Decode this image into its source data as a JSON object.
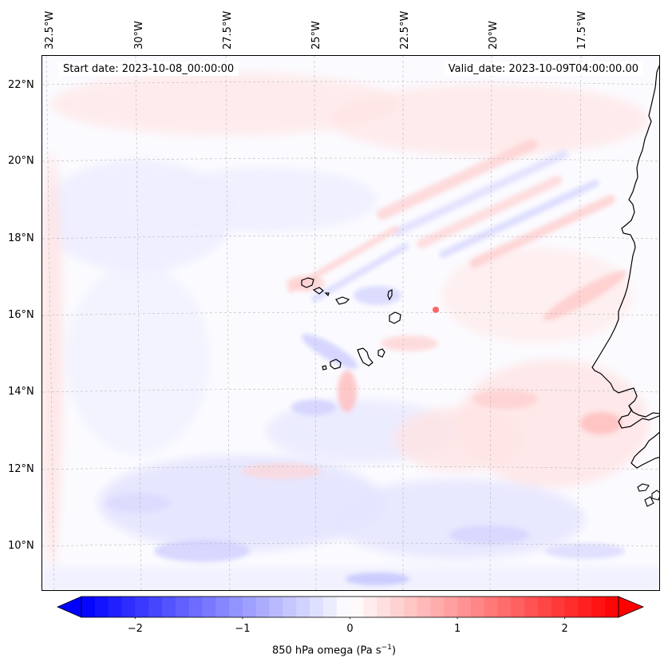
{
  "map": {
    "start_date": "Start date: 2023-10-08_00:00:00",
    "valid_date": "Valid_date: 2023-10-09T04:00:00.00",
    "lon_labels": [
      "32.5°W",
      "30°W",
      "27.5°W",
      "25°W",
      "22.5°W",
      "20°W",
      "17.5°W"
    ],
    "lat_labels": [
      "22°N",
      "20°N",
      "18°N",
      "16°N",
      "14°N",
      "12°N",
      "10°N"
    ],
    "field": "850 hPa omega",
    "colors": {
      "negative": "#0000ff",
      "positive": "#ff0000",
      "neutral": "#ffffff",
      "coast": "#000000",
      "grid": "#b0b0b0"
    }
  },
  "colorbar": {
    "label_main": "850 hPa omega (Pa s",
    "label_exp": "−1",
    "label_close": ")",
    "ticks": [
      "−2",
      "−1",
      "0",
      "1",
      "2"
    ],
    "tick_values": [
      -2,
      -1,
      0,
      1,
      2
    ],
    "vmin": -2.5,
    "vmax": 2.5,
    "levels": 40
  }
}
